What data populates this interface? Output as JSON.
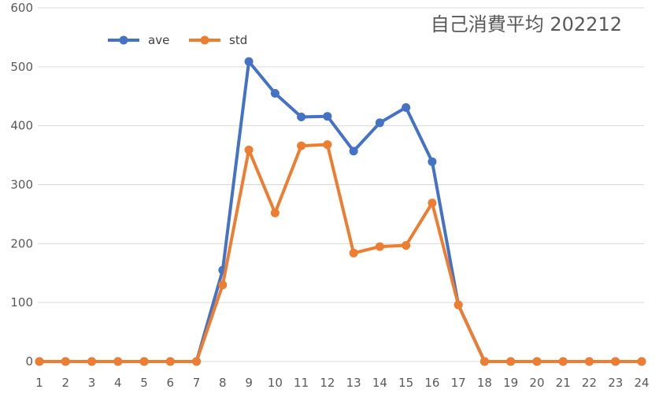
{
  "chart_data": {
    "type": "line",
    "title": "自己消費平均  202212",
    "categories": [
      "1",
      "2",
      "3",
      "4",
      "5",
      "6",
      "7",
      "8",
      "9",
      "10",
      "11",
      "12",
      "13",
      "14",
      "15",
      "16",
      "17",
      "18",
      "19",
      "20",
      "21",
      "22",
      "23",
      "24"
    ],
    "series": [
      {
        "name": "ave",
        "color": "#4472C4",
        "values": [
          0,
          0,
          0,
          0,
          0,
          0,
          0,
          155,
          509,
          455,
          415,
          416,
          357,
          405,
          431,
          339,
          96,
          0,
          0,
          0,
          0,
          0,
          0,
          0
        ]
      },
      {
        "name": "std",
        "color": "#ED7D31",
        "values": [
          0,
          0,
          0,
          0,
          0,
          0,
          0,
          130,
          359,
          252,
          366,
          368,
          184,
          195,
          197,
          269,
          96,
          0,
          0,
          0,
          0,
          0,
          0,
          0
        ]
      }
    ],
    "ylim": [
      0,
      600
    ],
    "yticks": [
      "0",
      "100",
      "200",
      "300",
      "400",
      "500",
      "600"
    ],
    "grid": true,
    "legend": "top-left"
  }
}
